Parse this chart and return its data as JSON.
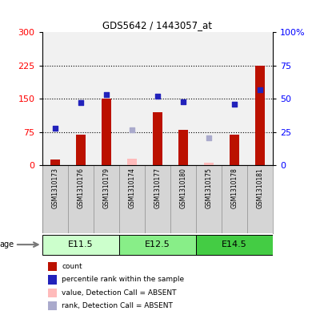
{
  "title": "GDS5642 / 1443057_at",
  "samples": [
    "GSM1310173",
    "GSM1310176",
    "GSM1310179",
    "GSM1310174",
    "GSM1310177",
    "GSM1310180",
    "GSM1310175",
    "GSM1310178",
    "GSM1310181"
  ],
  "age_groups": [
    {
      "label": "E11.5",
      "start": 0,
      "end": 3,
      "color": "#ccffcc"
    },
    {
      "label": "E12.5",
      "start": 3,
      "end": 6,
      "color": "#88ee88"
    },
    {
      "label": "E14.5",
      "start": 6,
      "end": 9,
      "color": "#44cc44"
    }
  ],
  "count_present": [
    13,
    70,
    150,
    null,
    120,
    80,
    null,
    70,
    225
  ],
  "count_absent": [
    null,
    null,
    null,
    15,
    null,
    null,
    7,
    null,
    null
  ],
  "rank_present": [
    28,
    47,
    53,
    null,
    52,
    48,
    null,
    46,
    57
  ],
  "rank_absent": [
    null,
    null,
    null,
    27,
    null,
    null,
    21,
    null,
    null
  ],
  "left_ylim": [
    0,
    300
  ],
  "right_ylim": [
    0,
    100
  ],
  "left_yticks": [
    0,
    75,
    150,
    225,
    300
  ],
  "right_yticks": [
    0,
    25,
    50,
    75,
    100
  ],
  "bar_color": "#bb1100",
  "bar_absent_color": "#ffbbbb",
  "dot_color": "#2222bb",
  "dot_absent_color": "#aaaacc",
  "legend_items": [
    {
      "color": "#bb1100",
      "label": "count"
    },
    {
      "color": "#2222bb",
      "label": "percentile rank within the sample"
    },
    {
      "color": "#ffbbbb",
      "label": "value, Detection Call = ABSENT"
    },
    {
      "color": "#aaaacc",
      "label": "rank, Detection Call = ABSENT"
    }
  ]
}
